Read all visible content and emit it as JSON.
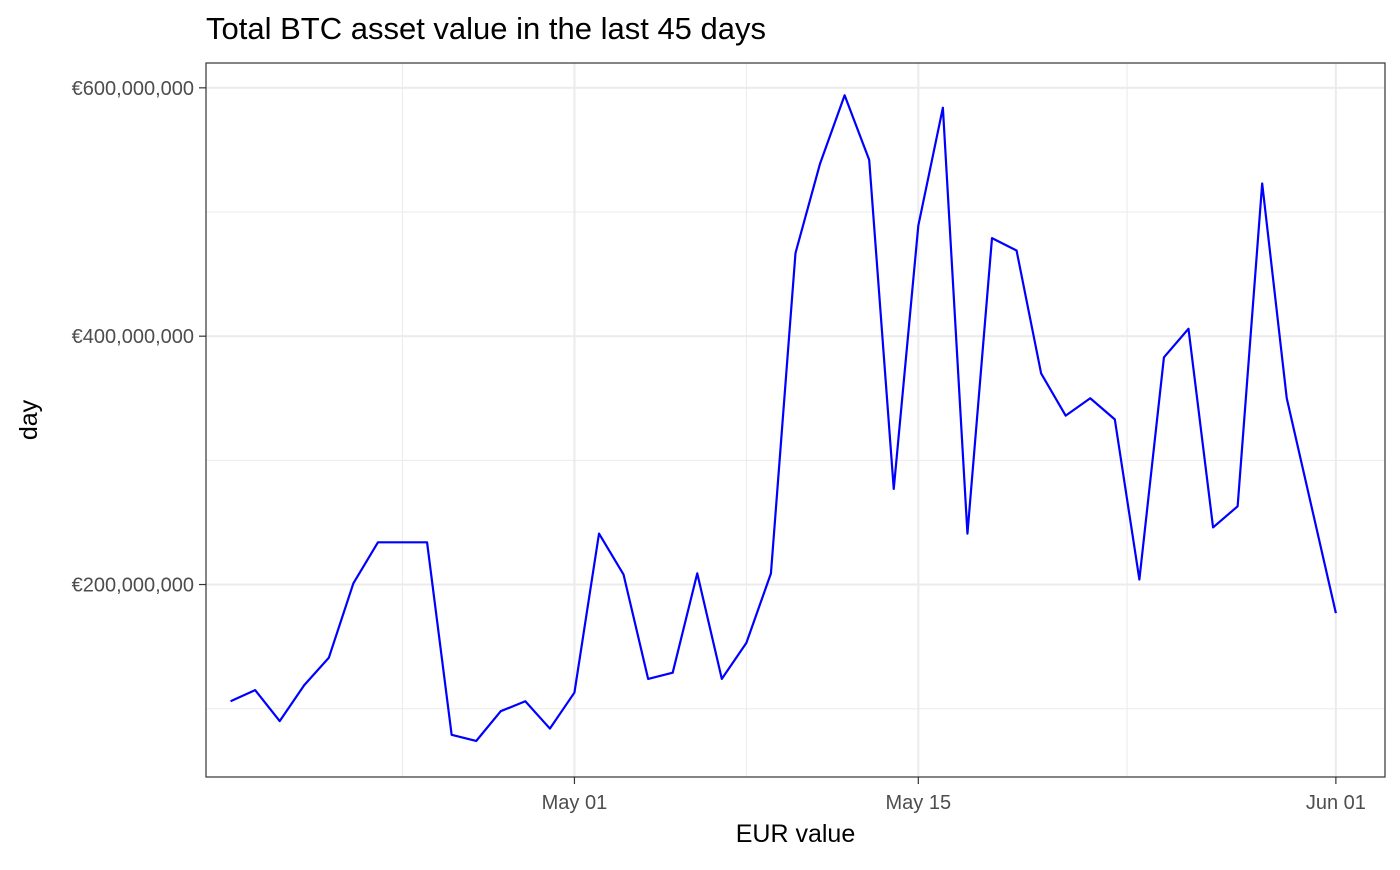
{
  "chart_data": {
    "type": "line",
    "title": "Total BTC asset value in the last 45 days",
    "xlabel": "EUR value",
    "ylabel": "day",
    "x_tick_labels": [
      "May 01",
      "May 15",
      "Jun 01"
    ],
    "y_tick_labels": [
      "€200,000,000",
      "€400,000,000",
      "€600,000,000"
    ],
    "x_ticks": [
      "2021-05-01",
      "2021-05-15",
      "2021-06-01"
    ],
    "y_ticks": [
      200000000,
      400000000,
      600000000
    ],
    "xlim": [
      "2021-04-16",
      "2021-06-03"
    ],
    "ylim": [
      45000000,
      620000000
    ],
    "grid": true,
    "legend": "none",
    "color": "#0000ff",
    "series": [
      {
        "x": [
          "2021-04-17",
          "2021-04-18",
          "2021-04-19",
          "2021-04-20",
          "2021-04-21",
          "2021-04-22",
          "2021-04-23",
          "2021-04-24",
          "2021-04-25",
          "2021-04-26",
          "2021-04-27",
          "2021-04-28",
          "2021-04-29",
          "2021-04-30",
          "2021-05-01",
          "2021-05-02",
          "2021-05-03",
          "2021-05-04",
          "2021-05-05",
          "2021-05-06",
          "2021-05-07",
          "2021-05-08",
          "2021-05-09",
          "2021-05-10",
          "2021-05-11",
          "2021-05-12",
          "2021-05-13",
          "2021-05-14",
          "2021-05-15",
          "2021-05-16",
          "2021-05-17",
          "2021-05-18",
          "2021-05-19",
          "2021-05-20",
          "2021-05-21",
          "2021-05-22",
          "2021-05-23",
          "2021-05-24",
          "2021-05-25",
          "2021-05-26",
          "2021-05-27",
          "2021-05-28",
          "2021-05-29",
          "2021-05-30",
          "2021-06-01"
        ],
        "values": [
          106000000,
          115000000,
          90000000,
          119000000,
          141000000,
          201000000,
          234000000,
          234000000,
          234000000,
          79000000,
          74000000,
          98000000,
          106000000,
          84000000,
          113000000,
          241000000,
          208000000,
          124000000,
          129000000,
          209000000,
          124000000,
          153000000,
          209000000,
          467000000,
          539000000,
          594000000,
          542000000,
          277000000,
          489000000,
          584000000,
          241000000,
          479000000,
          469000000,
          370000000,
          336000000,
          350000000,
          333000000,
          204000000,
          383000000,
          406000000,
          246000000,
          263000000,
          523000000,
          350000000,
          177000000
        ]
      }
    ]
  }
}
